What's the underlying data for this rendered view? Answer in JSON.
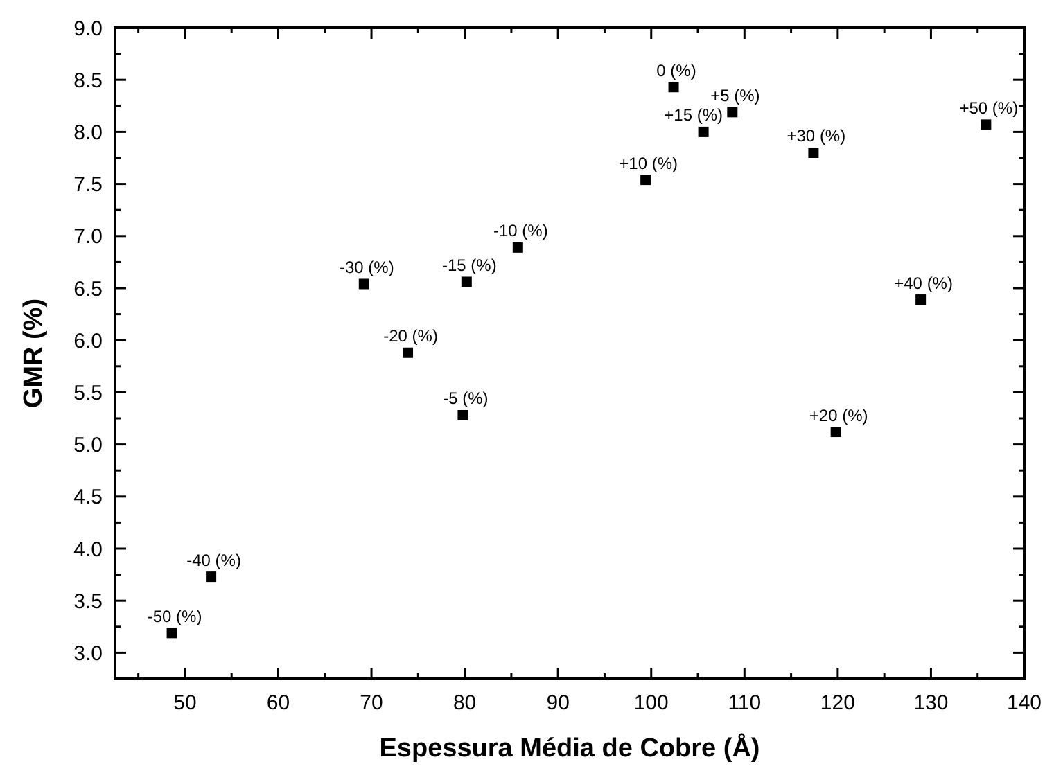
{
  "chart_data": {
    "type": "scatter",
    "xlabel": "Espessura Média de Cobre (Å)",
    "ylabel": "GMR (%)",
    "x": [
      48.6,
      52.8,
      69.2,
      73.9,
      80.2,
      85.7,
      79.8,
      102.4,
      108.7,
      105.6,
      99.4,
      117.4,
      135.9,
      128.9,
      119.8
    ],
    "series": [
      {
        "color": "#000000",
        "values": [
          3.19,
          3.73,
          6.54,
          5.88,
          6.56,
          6.89,
          5.28,
          8.43,
          8.19,
          8.0,
          7.54,
          7.8,
          8.07,
          6.39,
          5.12
        ]
      }
    ],
    "marker": "square",
    "xlim": [
      42.5,
      140
    ],
    "ylim": [
      2.75,
      9.0
    ],
    "xticks": [
      {
        "value": 45,
        "label": null
      },
      50,
      {
        "value": 55,
        "label": null
      },
      60,
      {
        "value": 65,
        "label": null
      },
      70,
      {
        "value": 75,
        "label": null
      },
      80,
      {
        "value": 85,
        "label": null
      },
      90,
      {
        "value": 95,
        "label": null
      },
      100,
      {
        "value": 105,
        "label": null
      },
      110,
      {
        "value": 115,
        "label": null
      },
      120,
      {
        "value": 125,
        "label": null
      },
      130,
      {
        "value": 135,
        "label": null
      },
      140
    ],
    "yticks": [
      {
        "value": 3.0,
        "label": "3.0"
      },
      {
        "value": 3.25,
        "label": null
      },
      {
        "value": 3.5,
        "label": "3.5"
      },
      {
        "value": 3.75,
        "label": null
      },
      {
        "value": 4.0,
        "label": "4.0"
      },
      {
        "value": 4.25,
        "label": null
      },
      {
        "value": 4.5,
        "label": "4.5"
      },
      {
        "value": 4.75,
        "label": null
      },
      {
        "value": 5.0,
        "label": "5.0"
      },
      {
        "value": 5.25,
        "label": null
      },
      {
        "value": 5.5,
        "label": "5.5"
      },
      {
        "value": 5.75,
        "label": null
      },
      {
        "value": 6.0,
        "label": "6.0"
      },
      {
        "value": 6.25,
        "label": null
      },
      {
        "value": 6.5,
        "label": "6.5"
      },
      {
        "value": 6.75,
        "label": null
      },
      {
        "value": 7.0,
        "label": "7.0"
      },
      {
        "value": 7.25,
        "label": null
      },
      {
        "value": 7.5,
        "label": "7.5"
      },
      {
        "value": 7.75,
        "label": null
      },
      {
        "value": 8.0,
        "label": "8.0"
      },
      {
        "value": 8.25,
        "label": null
      },
      {
        "value": 8.5,
        "label": "8.5"
      },
      {
        "value": 8.75,
        "label": null
      },
      {
        "value": 9.0,
        "label": "9.0"
      }
    ],
    "annotations": [
      {
        "text": "-50 (%)",
        "x": 48.6,
        "y": 3.19
      },
      {
        "text": "-40 (%)",
        "x": 52.8,
        "y": 3.73
      },
      {
        "text": "-30 (%)",
        "x": 69.2,
        "y": 6.54
      },
      {
        "text": "-20 (%)",
        "x": 73.9,
        "y": 5.88
      },
      {
        "text": "-15 (%)",
        "x": 80.2,
        "y": 6.56
      },
      {
        "text": "-10 (%)",
        "x": 85.7,
        "y": 6.89
      },
      {
        "text": "-5 (%)",
        "x": 79.8,
        "y": 5.28
      },
      {
        "text": "0 (%)",
        "x": 102.4,
        "y": 8.43
      },
      {
        "text": "+5 (%)",
        "x": 108.7,
        "y": 8.19
      },
      {
        "text": "+15 (%)",
        "x": 105.6,
        "y": 8.0
      },
      {
        "text": "+10 (%)",
        "x": 99.4,
        "y": 7.54
      },
      {
        "text": "+30 (%)",
        "x": 117.4,
        "y": 7.8
      },
      {
        "text": "+50 (%)",
        "x": 135.9,
        "y": 8.07
      },
      {
        "text": "+40 (%)",
        "x": 128.9,
        "y": 6.39
      },
      {
        "text": "+20 (%)",
        "x": 119.8,
        "y": 5.12
      }
    ],
    "tick_labels": true
  }
}
